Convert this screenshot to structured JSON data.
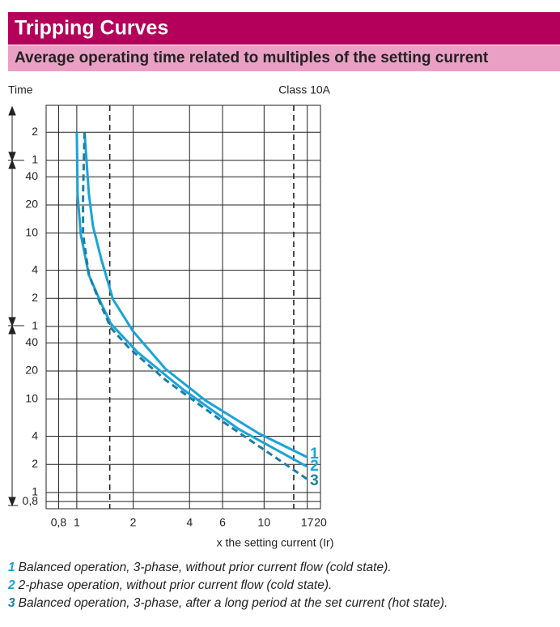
{
  "header": {
    "title": "Tripping Curves",
    "subtitle": "Average operating time related to multiples of the setting current"
  },
  "chart_data": {
    "type": "line",
    "y_label": "Time",
    "x_label": "x the setting current (Ir)",
    "annotation": "Class 10A",
    "log_x": true,
    "log_y": true,
    "grid": true,
    "xlim": [
      0.686,
      20
    ],
    "ylim": [
      0.67,
      14000
    ],
    "xticks": [
      {
        "value": 0.8,
        "label": "0,8"
      },
      1,
      2,
      4,
      6,
      10,
      17,
      20
    ],
    "yticks": [
      {
        "value": 7200,
        "label": "2"
      },
      {
        "value": 3600,
        "label": "1"
      },
      {
        "value": 2400,
        "label": "40"
      },
      {
        "value": 1200,
        "label": "20"
      },
      {
        "value": 600,
        "label": "10"
      },
      {
        "value": 240,
        "label": "4"
      },
      {
        "value": 120,
        "label": "2"
      },
      {
        "value": 60,
        "label": "1"
      },
      40,
      20,
      10,
      4,
      2,
      1,
      {
        "value": 0.8,
        "label": "0,8"
      }
    ],
    "reference_x": [
      1.5,
      14.4
    ],
    "series": [
      {
        "name": "1",
        "color": "#1aa3d9",
        "dashed": false,
        "x": [
          1.1,
          1.16,
          1.22,
          1.35,
          1.56,
          2.0,
          2.98,
          4.89,
          9.33,
          16.9
        ],
        "values": [
          7200,
          1585,
          711,
          319,
          117,
          53,
          21,
          9.6,
          4.3,
          2.4
        ]
      },
      {
        "name": "2",
        "color": "#1aa3d9",
        "dashed": false,
        "x": [
          1.0,
          1.01,
          1.05,
          1.16,
          1.35,
          1.52,
          2.1,
          3.63,
          7.28,
          16.9
        ],
        "values": [
          7200,
          1585,
          582,
          214,
          106,
          64,
          32,
          13,
          4.8,
          1.9
        ]
      },
      {
        "name": "3",
        "color": "#1a7fa6",
        "dashed": true,
        "x": [
          1.1,
          1.08,
          1.08,
          1.16,
          1.35,
          1.52,
          1.91,
          2.98,
          5.97,
          16.9
        ],
        "values": [
          7200,
          1585,
          582,
          214,
          100,
          58,
          35,
          16,
          5.8,
          1.4
        ]
      }
    ],
    "notes": [
      {
        "number": "1",
        "text": "Balanced operation, 3-phase, without prior current flow (cold state)."
      },
      {
        "number": "2",
        "text": "2-phase operation, without prior current flow (cold state)."
      },
      {
        "number": "3",
        "text": "Balanced operation, 3-phase, after a long period at the set current (hot state)."
      }
    ]
  }
}
